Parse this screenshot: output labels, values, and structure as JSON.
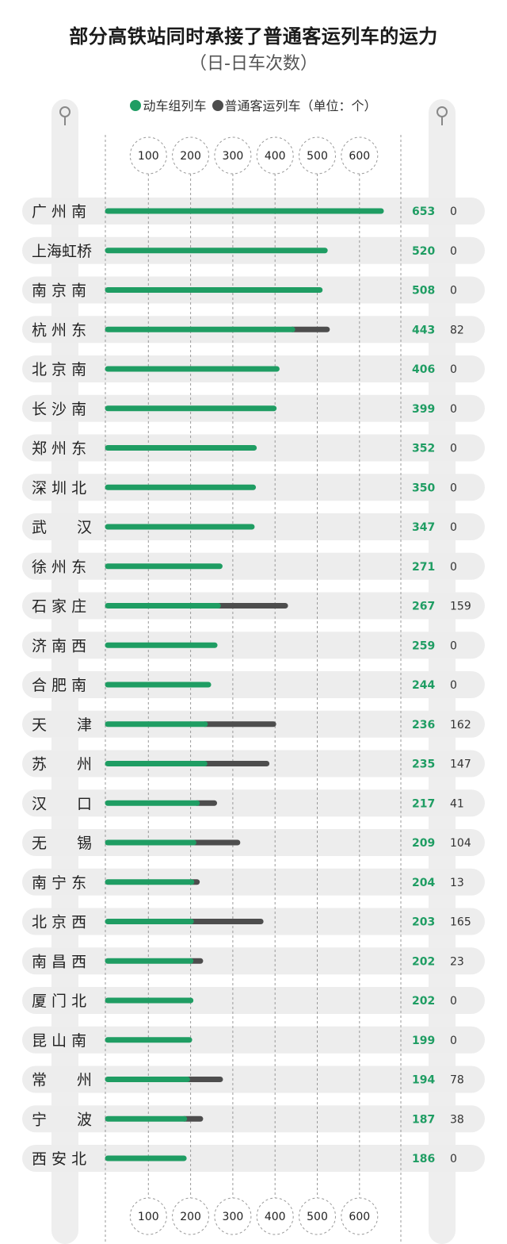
{
  "title": "部分高铁站同时承接了普通客运列车的运力",
  "subtitle": "（日-日车次数）",
  "legend": {
    "series1": "动车组列车",
    "series2": "普通客运列车（单位：个）"
  },
  "colors": {
    "emu": "#1f9d63",
    "normal": "#4d4d4d",
    "row_bg": "#ededed",
    "pillar": "#eeeeee"
  },
  "chart_data": {
    "type": "bar",
    "stacked": true,
    "orientation": "horizontal",
    "xlim": [
      0,
      650
    ],
    "x_ticks": [
      100,
      200,
      300,
      400,
      500,
      600
    ],
    "categories": [
      "广 州 南",
      "上海虹桥",
      "南 京 南",
      "杭 州 东",
      "北 京 南",
      "长 沙 南",
      "郑 州 东",
      "深 圳 北",
      "武　　汉",
      "徐 州 东",
      "石 家 庄",
      "济 南 西",
      "合 肥 南",
      "天　　津",
      "苏　　州",
      "汉　　口",
      "无　　锡",
      "南 宁 东",
      "北 京 西",
      "南 昌 西",
      "厦 门 北",
      "昆 山 南",
      "常　　州",
      "宁　　波",
      "西 安 北"
    ],
    "series": [
      {
        "name": "动车组列车",
        "values": [
          653,
          520,
          508,
          443,
          406,
          399,
          352,
          350,
          347,
          271,
          267,
          259,
          244,
          236,
          235,
          217,
          209,
          204,
          203,
          202,
          202,
          199,
          194,
          187,
          186
        ]
      },
      {
        "name": "普通客运列车",
        "values": [
          0,
          0,
          0,
          82,
          0,
          0,
          0,
          0,
          0,
          0,
          159,
          0,
          0,
          162,
          147,
          41,
          104,
          13,
          165,
          23,
          0,
          0,
          78,
          38,
          0
        ]
      }
    ]
  }
}
